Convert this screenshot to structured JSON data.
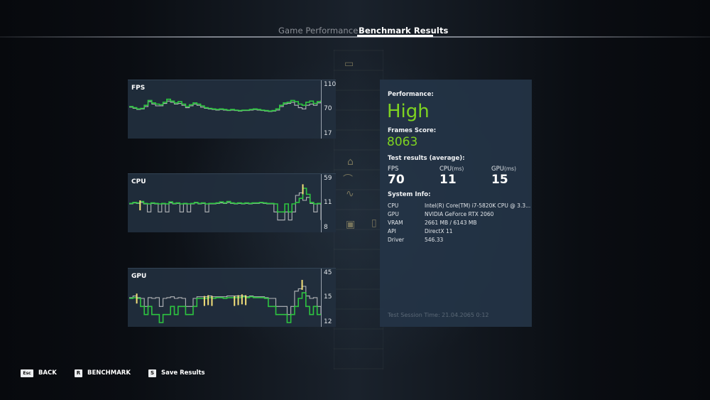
{
  "tabs": [
    {
      "label": "Game Performance",
      "active": false
    },
    {
      "label": "Benchmark Results",
      "active": true
    }
  ],
  "colors": {
    "accent_green": "#7ed321",
    "line_green": "#2ecc40",
    "line_white": "#d8d8d8",
    "line_yellow": "#f5e27a",
    "panel_bg": "#222f3e"
  },
  "charts": {
    "fps": {
      "title": "FPS",
      "ticks": [
        "110",
        "70",
        "17"
      ]
    },
    "cpu": {
      "title": "CPU",
      "ticks": [
        "59",
        "11",
        "8"
      ]
    },
    "gpu": {
      "title": "GPU",
      "ticks": [
        "45",
        "15",
        "12"
      ]
    }
  },
  "chart_data": [
    {
      "type": "line",
      "title": "FPS",
      "ylabel": "FPS",
      "yticks": [
        17,
        70,
        110
      ],
      "ylim": [
        17,
        110
      ],
      "series": [
        {
          "name": "frame rate (green)",
          "values": [
            76,
            74,
            72,
            73,
            78,
            86,
            82,
            80,
            79,
            83,
            88,
            85,
            82,
            84,
            80,
            76,
            79,
            82,
            80,
            77,
            74,
            73,
            72,
            71,
            72,
            71,
            70,
            71,
            70,
            69,
            70,
            70,
            71,
            72,
            71,
            70,
            69,
            68,
            69,
            72,
            78,
            82,
            83,
            86,
            84,
            80,
            78,
            83,
            85,
            81,
            84,
            86
          ]
        },
        {
          "name": "frame rate (white)",
          "values": [
            75,
            73,
            71,
            72,
            76,
            84,
            80,
            77,
            77,
            81,
            85,
            83,
            80,
            81,
            78,
            74,
            77,
            80,
            78,
            75,
            73,
            72,
            71,
            70,
            71,
            70,
            69,
            70,
            69,
            68,
            69,
            69,
            70,
            71,
            70,
            69,
            68,
            67,
            68,
            70,
            76,
            80,
            81,
            83,
            78,
            74,
            72,
            78,
            80,
            78,
            82,
            84
          ]
        }
      ]
    },
    {
      "type": "line",
      "title": "CPU",
      "ylabel": "ms",
      "yticks": [
        8,
        11,
        59
      ],
      "ylim": [
        8,
        59
      ],
      "series": [
        {
          "name": "frame time (green)",
          "values": [
            12,
            14,
            13,
            16,
            12,
            11,
            13,
            12,
            11,
            12,
            11,
            15,
            12,
            13,
            11,
            12,
            11,
            12,
            14,
            12,
            13,
            11,
            12,
            12,
            13,
            15,
            13,
            16,
            13,
            12,
            13,
            12,
            13,
            12,
            13,
            13,
            14,
            13,
            12,
            12,
            11,
            10,
            10,
            11,
            10,
            11,
            14,
            22,
            42,
            30,
            14,
            11,
            12,
            11
          ]
        },
        {
          "name": "frame time (white)",
          "values": [
            11,
            13,
            12,
            14,
            11,
            10,
            12,
            11,
            10,
            11,
            10,
            13,
            11,
            12,
            10,
            11,
            10,
            11,
            13,
            11,
            12,
            10,
            11,
            11,
            12,
            13,
            12,
            14,
            12,
            11,
            12,
            11,
            12,
            11,
            12,
            12,
            13,
            12,
            11,
            11,
            10,
            9,
            9,
            10,
            9,
            10,
            28,
            33,
            18,
            24,
            12,
            10,
            11,
            9
          ]
        },
        {
          "name": "frame time (yellow)",
          "values": [
            null,
            null,
            null,
            18,
            null,
            null,
            null,
            null,
            null,
            null,
            null,
            null,
            null,
            null,
            null,
            null,
            null,
            null,
            null,
            null,
            null,
            null,
            null,
            null,
            null,
            null,
            null,
            null,
            null,
            null,
            null,
            null,
            null,
            null,
            null,
            null,
            null,
            null,
            null,
            null,
            null,
            null,
            null,
            null,
            null,
            null,
            null,
            null,
            50,
            null,
            null,
            null,
            null,
            null
          ]
        }
      ]
    },
    {
      "type": "line",
      "title": "GPU",
      "ylabel": "ms",
      "yticks": [
        12,
        15,
        45
      ],
      "ylim": [
        12,
        45
      ],
      "series": [
        {
          "name": "frame time (green)",
          "values": [
            15,
            16,
            15,
            14,
            13,
            14,
            13,
            13,
            12,
            13,
            13,
            14,
            13,
            14,
            14,
            13,
            13,
            14,
            15,
            15,
            15,
            16,
            15,
            16,
            16,
            15,
            16,
            16,
            16,
            16,
            17,
            16,
            17,
            16,
            16,
            16,
            15,
            14,
            14,
            13,
            13,
            13,
            12,
            13,
            14,
            15,
            22,
            14,
            13,
            14,
            13,
            13
          ]
        },
        {
          "name": "frame time (white)",
          "values": [
            16,
            18,
            16,
            15,
            14,
            16,
            15,
            16,
            14,
            15,
            16,
            17,
            15,
            16,
            15,
            14,
            14,
            15,
            17,
            17,
            17,
            18,
            17,
            17,
            17,
            17,
            18,
            18,
            18,
            18,
            18,
            17,
            18,
            17,
            17,
            17,
            16,
            15,
            15,
            14,
            14,
            14,
            13,
            14,
            24,
            27,
            30,
            18,
            15,
            16,
            14,
            13
          ]
        },
        {
          "name": "frame time (yellow)",
          "values": [
            null,
            null,
            21,
            null,
            null,
            null,
            null,
            null,
            null,
            null,
            null,
            null,
            null,
            null,
            null,
            null,
            null,
            null,
            null,
            null,
            18,
            19,
            18,
            null,
            null,
            null,
            null,
            null,
            18,
            19,
            20,
            19,
            null,
            null,
            null,
            null,
            null,
            null,
            null,
            null,
            null,
            null,
            null,
            null,
            null,
            null,
            38,
            null,
            null,
            null,
            null,
            null
          ]
        }
      ]
    }
  ],
  "performance": {
    "label": "Performance:",
    "value": "High",
    "score_label": "Frames Score:",
    "score": "8063"
  },
  "test_results": {
    "label": "Test results (average):",
    "stats": [
      {
        "label": "FPS",
        "unit": "",
        "value": "70"
      },
      {
        "label": "CPU",
        "unit": "(ms)",
        "value": "11"
      },
      {
        "label": "GPU",
        "unit": "(ms)",
        "value": "15"
      }
    ]
  },
  "system_info": {
    "label": "System Info:",
    "rows": [
      {
        "key": "CPU",
        "value": "Intel(R) Core(TM) i7-5820K CPU @ 3.3..."
      },
      {
        "key": "GPU",
        "value": "NVIDIA GeForce RTX 2060"
      },
      {
        "key": "VRAM",
        "value": "2661 MB / 6143 MB"
      },
      {
        "key": "API",
        "value": "DirectX 11"
      },
      {
        "key": "Driver",
        "value": "546.33"
      }
    ]
  },
  "session": {
    "text": "Test Session Time: 21.04.2065 0:12"
  },
  "footer": {
    "back": {
      "key": "Esc",
      "label": "BACK"
    },
    "benchmark": {
      "key": "R",
      "label": "BENCHMARK"
    },
    "save": {
      "key": "S",
      "label": "Save Results"
    }
  }
}
